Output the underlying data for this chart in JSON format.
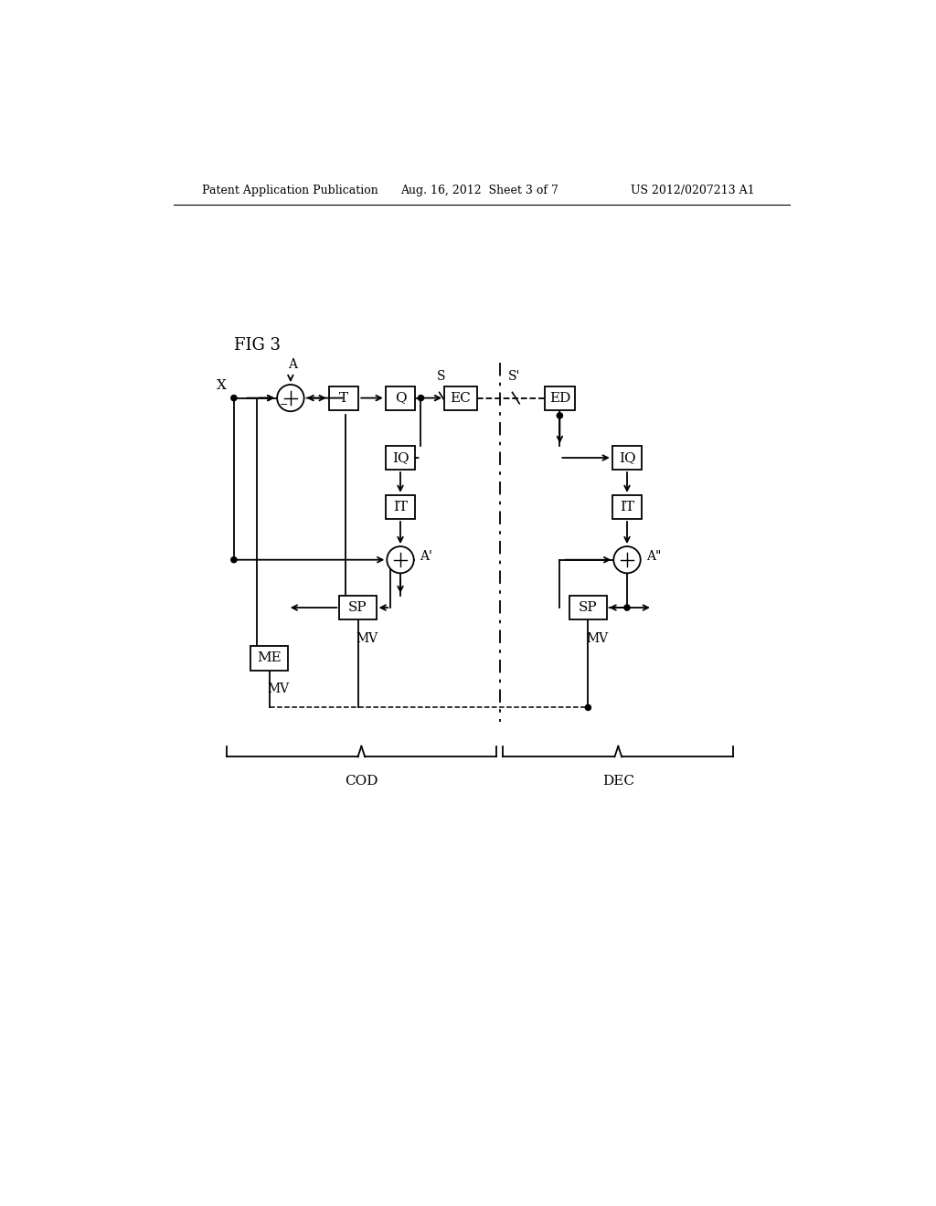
{
  "background_color": "#ffffff",
  "header_left": "Patent Application Publication",
  "header_center": "Aug. 16, 2012  Sheet 3 of 7",
  "header_right": "US 2012/0207213 A1",
  "fig_label": "FIG 3",
  "cod_label": "COD",
  "dec_label": "DEC",
  "line_color": "#000000",
  "text_color": "#000000"
}
